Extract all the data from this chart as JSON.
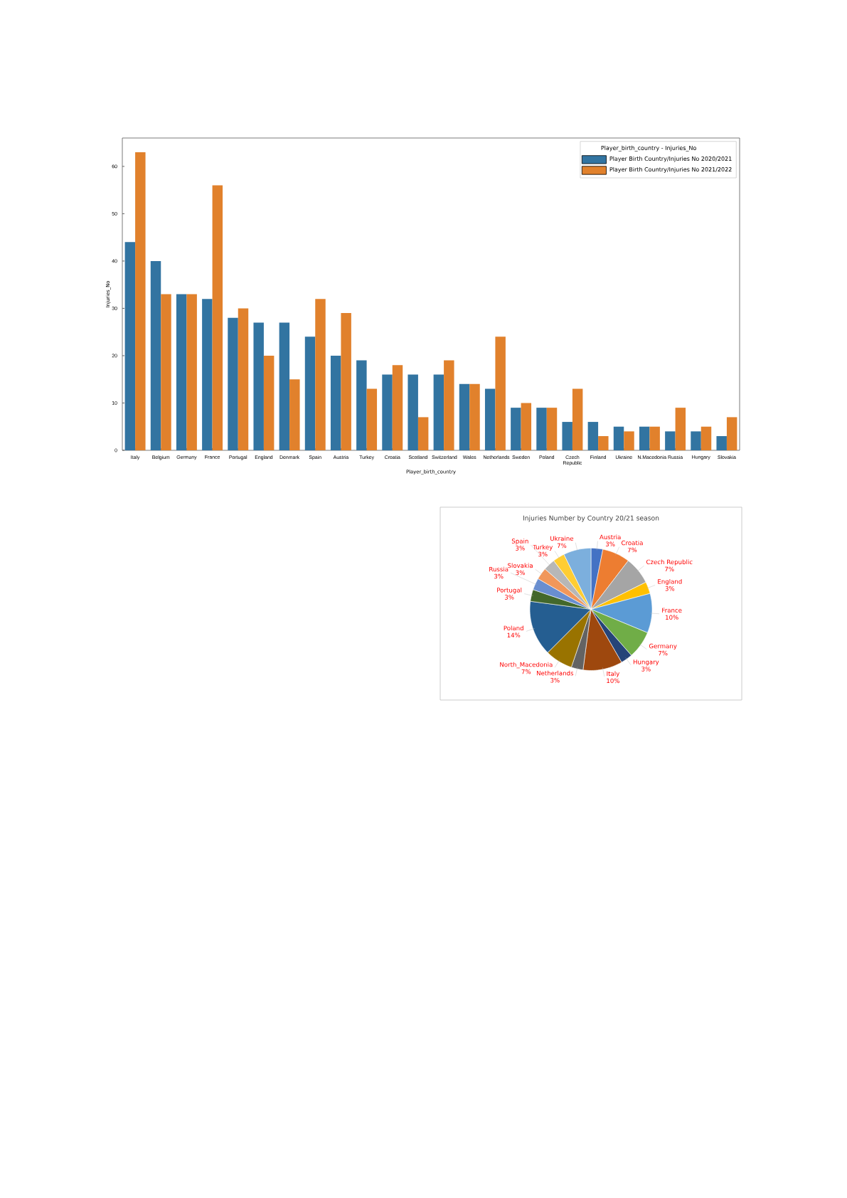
{
  "chart_data": [
    {
      "type": "bar",
      "xlabel": "Player_birth_country",
      "ylabel": "Injuries_No",
      "legend_title": "Player_birth_country - Injuries_No",
      "legend": "top right",
      "categories": [
        "Italy",
        "Belgium",
        "Germany",
        "France",
        "Portugal",
        "England",
        "Denmark",
        "Spain",
        "Austria",
        "Turkey",
        "Croatia",
        "Scotland",
        "Switzerland",
        "Wales",
        "Netherlands",
        "Sweden",
        "Poland",
        "Czech Republic",
        "Finland",
        "Ukraine",
        "N.Macedonia",
        "Russia",
        "Hungary",
        "Slovakia"
      ],
      "series": [
        {
          "name": "Player Birth Country/Injuries No 2020/2021",
          "color": "#3274a1",
          "values": [
            44,
            40,
            33,
            32,
            28,
            27,
            27,
            24,
            20,
            19,
            16,
            16,
            16,
            14,
            13,
            9,
            9,
            6,
            6,
            5,
            5,
            4,
            4,
            3
          ]
        },
        {
          "name": "Player Birth Country/Injuries No 2021/2022",
          "color": "#e1812c",
          "values": [
            63,
            33,
            33,
            56,
            30,
            20,
            15,
            32,
            29,
            13,
            18,
            7,
            19,
            14,
            24,
            10,
            9,
            13,
            3,
            4,
            5,
            9,
            5,
            7
          ]
        }
      ],
      "ylim": [
        0,
        66
      ],
      "yticks": [
        0,
        10,
        20,
        30,
        40,
        50,
        60
      ]
    },
    {
      "type": "pie",
      "title": "Injuries Number by Country 20/21 season",
      "value_labels": [
        "3%",
        "7%",
        "7%",
        "3%",
        "10%",
        "7%",
        "3%",
        "10%",
        "3%",
        "7%",
        "14%",
        "3%",
        "3%",
        "3%",
        "3%",
        "3%",
        "7%"
      ],
      "categories": [
        "Austria",
        "Croatia",
        "Czech Republic",
        "England",
        "France",
        "Germany",
        "Hungary",
        "Italy",
        "Netherlands",
        "North_Macedonia",
        "Poland",
        "Portugal",
        "Russia",
        "Slovakia",
        "Spain",
        "Turkey",
        "Ukraine"
      ],
      "values": [
        3,
        7,
        7,
        3,
        10,
        7,
        3,
        10,
        3,
        7,
        14,
        3,
        3,
        3,
        3,
        3,
        7
      ],
      "colors": [
        "#4472c4",
        "#ed7d31",
        "#a5a5a5",
        "#ffc000",
        "#5b9bd5",
        "#70ad47",
        "#264478",
        "#9e480e",
        "#636363",
        "#997300",
        "#255e91",
        "#43682b",
        "#698ed0",
        "#f1975a",
        "#b7b7b7",
        "#ffcd33",
        "#7cafdd"
      ]
    }
  ]
}
